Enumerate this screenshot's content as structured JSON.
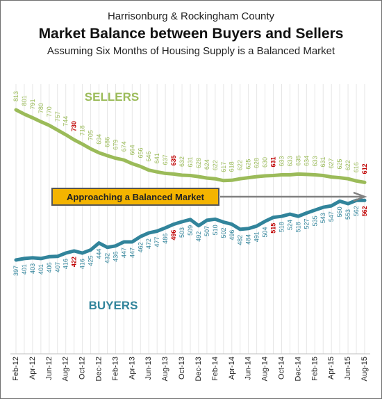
{
  "header": {
    "top_line": "Harrisonburg & Rockingham County",
    "title": "Market Balance between Buyers and Sellers",
    "subtitle": "Assuming Six Months of Housing Supply is a Balanced Market"
  },
  "annotation": {
    "text": "Approaching a Balanced Market"
  },
  "colors": {
    "sellers": "#9bbb59",
    "buyers": "#31849b",
    "highlight": "#c00000",
    "arrow": "#808080",
    "callout_fill": "#f4b400"
  },
  "chart_data": {
    "type": "line",
    "title": "Market Balance between Buyers and Sellers",
    "subtitle": "Assuming Six Months of Housing Supply is a Balanced Market",
    "x": [
      "Feb-12",
      "Mar-12",
      "Apr-12",
      "May-12",
      "Jun-12",
      "Jul-12",
      "Aug-12",
      "Sep-12",
      "Oct-12",
      "Nov-12",
      "Dec-12",
      "Jan-13",
      "Feb-13",
      "Mar-13",
      "Apr-13",
      "May-13",
      "Jun-13",
      "Jul-13",
      "Aug-13",
      "Sep-13",
      "Oct-13",
      "Nov-13",
      "Dec-13",
      "Jan-14",
      "Feb-14",
      "Mar-14",
      "Apr-14",
      "May-14",
      "Jun-14",
      "Jul-14",
      "Aug-14",
      "Sep-14",
      "Oct-14",
      "Nov-14",
      "Dec-14",
      "Jan-15",
      "Feb-15",
      "Mar-15",
      "Apr-15",
      "May-15",
      "Jun-15",
      "Jul-15",
      "Aug-15"
    ],
    "tick_labels": [
      "Feb-12",
      "Apr-12",
      "Jun-12",
      "Aug-12",
      "Oct-12",
      "Dec-12",
      "Feb-13",
      "Apr-13",
      "Jun-13",
      "Aug-13",
      "Oct-13",
      "Dec-13",
      "Feb-14",
      "Apr-14",
      "Jun-14",
      "Aug-14",
      "Oct-14",
      "Dec-14",
      "Feb-15",
      "Apr-15",
      "Jun-15",
      "Aug-15"
    ],
    "series": [
      {
        "name": "SELLERS",
        "values": [
          813,
          801,
          791,
          780,
          770,
          757,
          744,
          730,
          718,
          705,
          694,
          686,
          679,
          674,
          664,
          656,
          646,
          641,
          637,
          635,
          632,
          631,
          628,
          624,
          622,
          617,
          618,
          622,
          625,
          628,
          630,
          631,
          633,
          633,
          635,
          634,
          633,
          631,
          627,
          625,
          622,
          616,
          612
        ],
        "highlight_indices": [
          7,
          19,
          31,
          42
        ]
      },
      {
        "name": "BUYERS",
        "values": [
          397,
          401,
          403,
          401,
          406,
          407,
          416,
          422,
          416,
          425,
          444,
          432,
          436,
          447,
          447,
          462,
          472,
          477,
          486,
          496,
          503,
          509,
          492,
          507,
          510,
          502,
          496,
          482,
          484,
          491,
          504,
          515,
          518,
          524,
          518,
          527,
          535,
          543,
          547,
          560,
          553,
          562,
          562
        ],
        "highlight_indices": [
          7,
          19,
          31,
          42
        ]
      }
    ],
    "xlabel": "",
    "ylabel": "",
    "grid": true
  }
}
